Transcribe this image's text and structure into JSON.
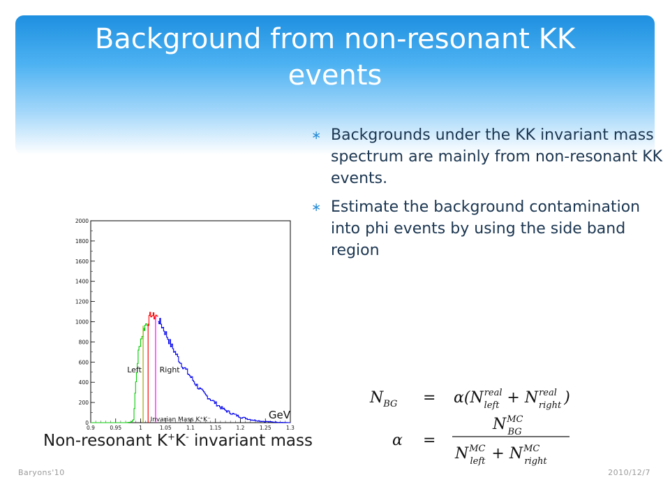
{
  "slide": {
    "title_line1": "Background from non-resonant KK",
    "title_line2": "events",
    "bullets": [
      {
        "marker": "∗",
        "text": "Backgrounds under the KK invariant mass spectrum are mainly from non-resonant KK events."
      },
      {
        "marker": "∗",
        "text": "Estimate the background contamination into phi events by using the side band region"
      }
    ],
    "caption": {
      "pre": "Non-resonant K",
      "sup1": "+",
      "mid": "K",
      "sup2": "-",
      "post": " invariant mass"
    },
    "footer_left": "Baryons'10",
    "footer_right": "2010/12/7",
    "colors": {
      "left_band": "#00cc00",
      "signal": "#ff0000",
      "right_band": "#0000ee",
      "background_line": "#9aa800",
      "right_edge": "#ff00ff"
    }
  },
  "formula": {
    "line1": {
      "lhs": "N",
      "lhs_sub": "BG",
      "eq": "=",
      "rhs_pre": "α(N",
      "sup1": "real",
      "sub1": "left",
      "plus": " + N",
      "sup2": "real",
      "sub2": "right",
      "close": ")"
    },
    "line2": {
      "lhs": "α",
      "eq": "=",
      "num": "N",
      "num_sup": "MC",
      "num_sub": "BG",
      "den1": "N",
      "den1_sup": "MC",
      "den1_sub": "left",
      "den_plus": " + N",
      "den2_sup": "MC",
      "den2_sub": "right"
    }
  },
  "chart_data": {
    "type": "histogram",
    "xlabel": "Invarian Mass K⁺K⁻",
    "unit_label": "GeV",
    "xlim": [
      0.9,
      1.3
    ],
    "ylim": [
      0,
      2000
    ],
    "x_ticks": [
      "0.9",
      "0.95",
      "1",
      "1.05",
      "1.1",
      "1.15",
      "1.2",
      "1.25",
      "1.3"
    ],
    "y_ticks": [
      "0",
      "200",
      "400",
      "600",
      "800",
      "1000",
      "1200",
      "1400",
      "1600",
      "1800",
      "2000"
    ],
    "region_labels": {
      "left": "Left",
      "right": "Right"
    },
    "series": [
      {
        "name": "Left",
        "color": "#00cc00",
        "points": [
          [
            0.9,
            0
          ],
          [
            0.97,
            0
          ],
          [
            0.98,
            5
          ],
          [
            0.985,
            30
          ],
          [
            0.99,
            400
          ],
          [
            0.995,
            700
          ],
          [
            1.0,
            830
          ],
          [
            1.005,
            920
          ],
          [
            1.01,
            980
          ],
          [
            1.015,
            1000
          ]
        ]
      },
      {
        "name": "",
        "color": "#ff0000",
        "points": [
          [
            1.015,
            1000
          ],
          [
            1.02,
            1080
          ],
          [
            1.025,
            1050
          ],
          [
            1.03,
            1060
          ],
          [
            1.035,
            1020
          ]
        ]
      },
      {
        "name": "Right",
        "color": "#0000ee",
        "points": [
          [
            1.035,
            1020
          ],
          [
            1.04,
            980
          ],
          [
            1.05,
            880
          ],
          [
            1.06,
            770
          ],
          [
            1.07,
            680
          ],
          [
            1.08,
            590
          ],
          [
            1.09,
            520
          ],
          [
            1.1,
            450
          ],
          [
            1.11,
            380
          ],
          [
            1.12,
            320
          ],
          [
            1.13,
            270
          ],
          [
            1.14,
            230
          ],
          [
            1.15,
            190
          ],
          [
            1.16,
            150
          ],
          [
            1.17,
            120
          ],
          [
            1.18,
            95
          ],
          [
            1.19,
            75
          ],
          [
            1.2,
            55
          ],
          [
            1.22,
            30
          ],
          [
            1.24,
            15
          ],
          [
            1.26,
            8
          ],
          [
            1.28,
            3
          ],
          [
            1.3,
            0
          ]
        ]
      }
    ]
  }
}
